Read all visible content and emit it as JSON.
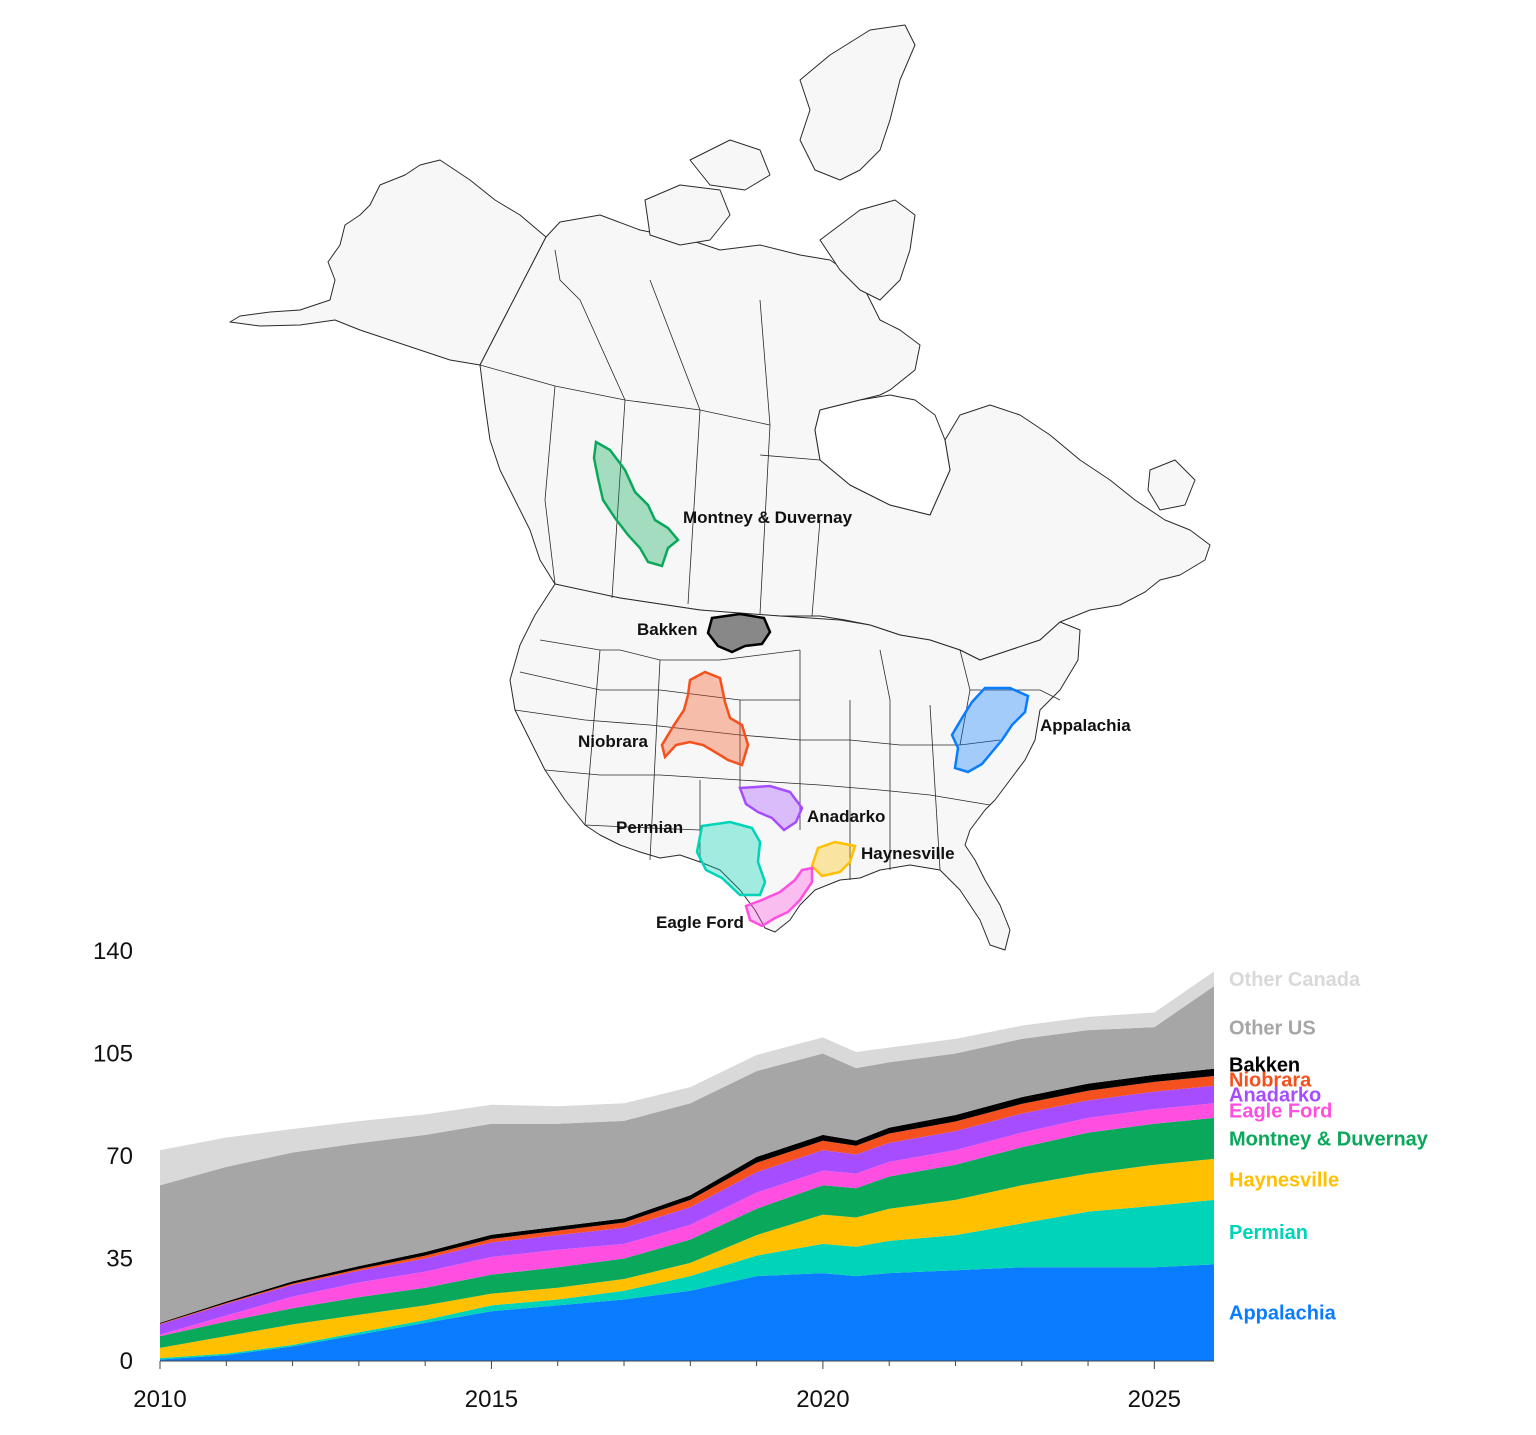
{
  "map": {
    "basins": [
      {
        "key": "montney",
        "label": "Montney & Duvernay",
        "color": "#0aa85a"
      },
      {
        "key": "bakken",
        "label": "Bakken",
        "color": "#000000"
      },
      {
        "key": "niobrara",
        "label": "Niobrara",
        "color": "#f4511e"
      },
      {
        "key": "appalachia",
        "label": "Appalachia",
        "color": "#0a7cff"
      },
      {
        "key": "anadarko",
        "label": "Anadarko",
        "color": "#a64dff"
      },
      {
        "key": "permian",
        "label": "Permian",
        "color": "#00d4b8"
      },
      {
        "key": "haynesville",
        "label": "Haynesville",
        "color": "#ffc000"
      },
      {
        "key": "eagleford",
        "label": "Eagle Ford",
        "color": "#ff4fe0"
      }
    ]
  },
  "chart_data": {
    "type": "area",
    "stacked": true,
    "xlim": [
      2010,
      2025.9
    ],
    "ylim": [
      0,
      140
    ],
    "x_ticks": [
      2010,
      2015,
      2020,
      2025
    ],
    "y_ticks": [
      0,
      35,
      70,
      105,
      140
    ],
    "x": [
      2010,
      2011,
      2012,
      2013,
      2014,
      2015,
      2016,
      2017,
      2018,
      2019,
      2020,
      2020.5,
      2021,
      2022,
      2023,
      2024,
      2025,
      2025.9
    ],
    "series": [
      {
        "name": "Appalachia",
        "color": "#0a7cff",
        "values": [
          0.5,
          2,
          5,
          9,
          13,
          17,
          19,
          21,
          24,
          29,
          30,
          29,
          30,
          31,
          32,
          32,
          32,
          33
        ]
      },
      {
        "name": "Permian",
        "color": "#00d4b8",
        "values": [
          0.5,
          0.5,
          0.5,
          0.8,
          1,
          2,
          2,
          3,
          5,
          7,
          10,
          10,
          11,
          12,
          15,
          19,
          21,
          22
        ]
      },
      {
        "name": "Haynesville",
        "color": "#ffc000",
        "values": [
          3.5,
          6,
          7,
          6,
          5,
          4,
          4,
          4,
          4.5,
          7,
          10,
          10,
          11,
          12,
          13,
          13,
          14,
          14
        ]
      },
      {
        "name": "Montney & Duvernay",
        "color": "#0aa85a",
        "values": [
          4,
          5,
          5.5,
          6,
          6,
          6.5,
          7,
          7,
          8,
          9,
          10,
          10,
          11,
          12,
          13,
          14,
          14,
          14
        ]
      },
      {
        "name": "Eagle Ford",
        "color": "#ff4fe0",
        "values": [
          0.5,
          2,
          4,
          5,
          5.5,
          6,
          6,
          5,
          5,
          5.5,
          5,
          5,
          5,
          5,
          5,
          5,
          5,
          5
        ]
      },
      {
        "name": "Anadarko",
        "color": "#a64dff",
        "values": [
          3.5,
          4,
          4,
          4,
          4.5,
          5,
          5,
          5.5,
          6,
          7,
          7,
          6.5,
          6.5,
          6.5,
          6.5,
          6,
          6,
          6
        ]
      },
      {
        "name": "Niobrara",
        "color": "#f4511e",
        "values": [
          0.2,
          0.3,
          0.4,
          0.6,
          1,
          1.2,
          1.5,
          1.8,
          2.5,
          3.2,
          3.2,
          3,
          3.2,
          3.3,
          3.3,
          3.3,
          3.3,
          3.3
        ]
      },
      {
        "name": "Bakken",
        "color": "#000000",
        "values": [
          0.3,
          0.5,
          0.8,
          1,
          1.2,
          1.4,
          1.4,
          1.4,
          1.6,
          2,
          2,
          1.8,
          2,
          2.2,
          2.3,
          2.4,
          2.4,
          2.5
        ]
      },
      {
        "name": "Other US",
        "color": "#a6a6a6",
        "values": [
          47,
          46,
          44,
          42,
          40,
          37.9,
          35.1,
          33.3,
          31.4,
          29.3,
          27.8,
          24.7,
          22.3,
          21,
          19.9,
          18.3,
          16.3,
          28.2
        ]
      },
      {
        "name": "Other Canada",
        "color": "#d9d9d9",
        "values": [
          12,
          10,
          8,
          7.5,
          7,
          6.5,
          6,
          6,
          5.5,
          5.5,
          5.5,
          5.5,
          5,
          5,
          4.5,
          4.5,
          5,
          5
        ]
      }
    ]
  }
}
